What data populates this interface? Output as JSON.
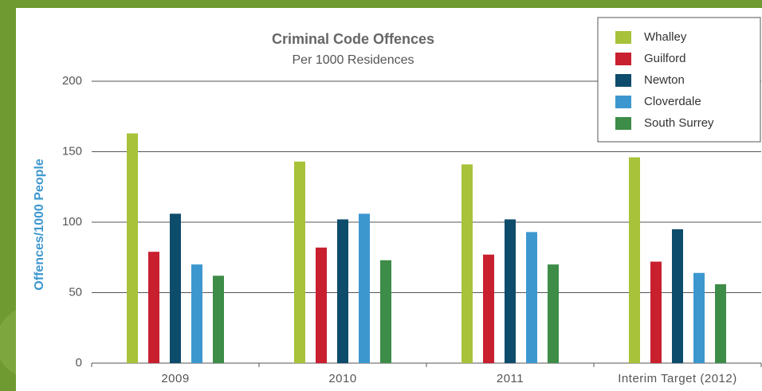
{
  "chart_data": {
    "type": "bar",
    "title": "Criminal Code Offences",
    "subtitle": "Per 1000 Residences",
    "y_label": "Offences/1000 People",
    "categories": [
      "2009",
      "2010",
      "2011",
      "Interim Target (2012)"
    ],
    "series": [
      {
        "name": "Whalley",
        "color": "#a8c23a",
        "values": [
          163,
          143,
          141,
          146
        ]
      },
      {
        "name": "Guilford",
        "color": "#c8202f",
        "values": [
          79,
          82,
          77,
          72
        ]
      },
      {
        "name": "Newton",
        "color": "#0e4c6c",
        "values": [
          106,
          102,
          102,
          95
        ]
      },
      {
        "name": "Cloverdale",
        "color": "#3d97cf",
        "values": [
          70,
          106,
          93,
          64
        ]
      },
      {
        "name": "South Surrey",
        "color": "#3d8c47",
        "values": [
          62,
          73,
          70,
          56
        ]
      }
    ],
    "ylim": [
      0,
      200
    ],
    "yticks": [
      0,
      50,
      100,
      150,
      200
    ],
    "grid": true,
    "legend": "upper right"
  }
}
